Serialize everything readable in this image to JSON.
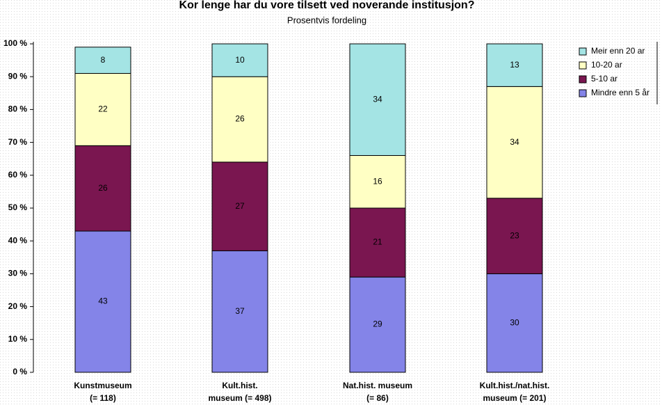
{
  "chart_data": {
    "type": "stacked-bar",
    "title": "Kor lenge har du vore tilsett ved noverande institusjon?",
    "subtitle": "Prosentvis fordeling",
    "categories": [
      [
        "Kunstmuseum",
        "(= 118)"
      ],
      [
        "Kult.hist.",
        "museum (= 498)"
      ],
      [
        "Nat.hist. museum",
        "(= 86)"
      ],
      [
        "Kult.hist./nat.hist.",
        "museum (= 201)"
      ]
    ],
    "series": [
      {
        "name": "Mindre enn 5 år",
        "color": "#8484e8",
        "values": [
          43,
          37,
          29,
          30
        ]
      },
      {
        "name": "5-10 ar",
        "color": "#7a1650",
        "values": [
          26,
          27,
          21,
          23
        ]
      },
      {
        "name": "10-20 ar",
        "color": "#ffffc4",
        "values": [
          22,
          26,
          16,
          34
        ]
      },
      {
        "name": "Meir enn 20 ar",
        "color": "#a4e4e4",
        "values": [
          8,
          10,
          34,
          13
        ]
      }
    ],
    "ylim": [
      0,
      100
    ],
    "yticks": [
      {
        "value": 0,
        "label": "0 %"
      },
      {
        "value": 10,
        "label": "10 %"
      },
      {
        "value": 20,
        "label": "20 %"
      },
      {
        "value": 30,
        "label": "30 %"
      },
      {
        "value": 40,
        "label": "40 %"
      },
      {
        "value": 50,
        "label": "50 %"
      },
      {
        "value": 60,
        "label": "60 %"
      },
      {
        "value": 70,
        "label": "70 %"
      },
      {
        "value": 80,
        "label": "80 %"
      },
      {
        "value": 90,
        "label": "90 %"
      },
      {
        "value": 100,
        "label": "100 %"
      }
    ],
    "legend": "top-right"
  }
}
